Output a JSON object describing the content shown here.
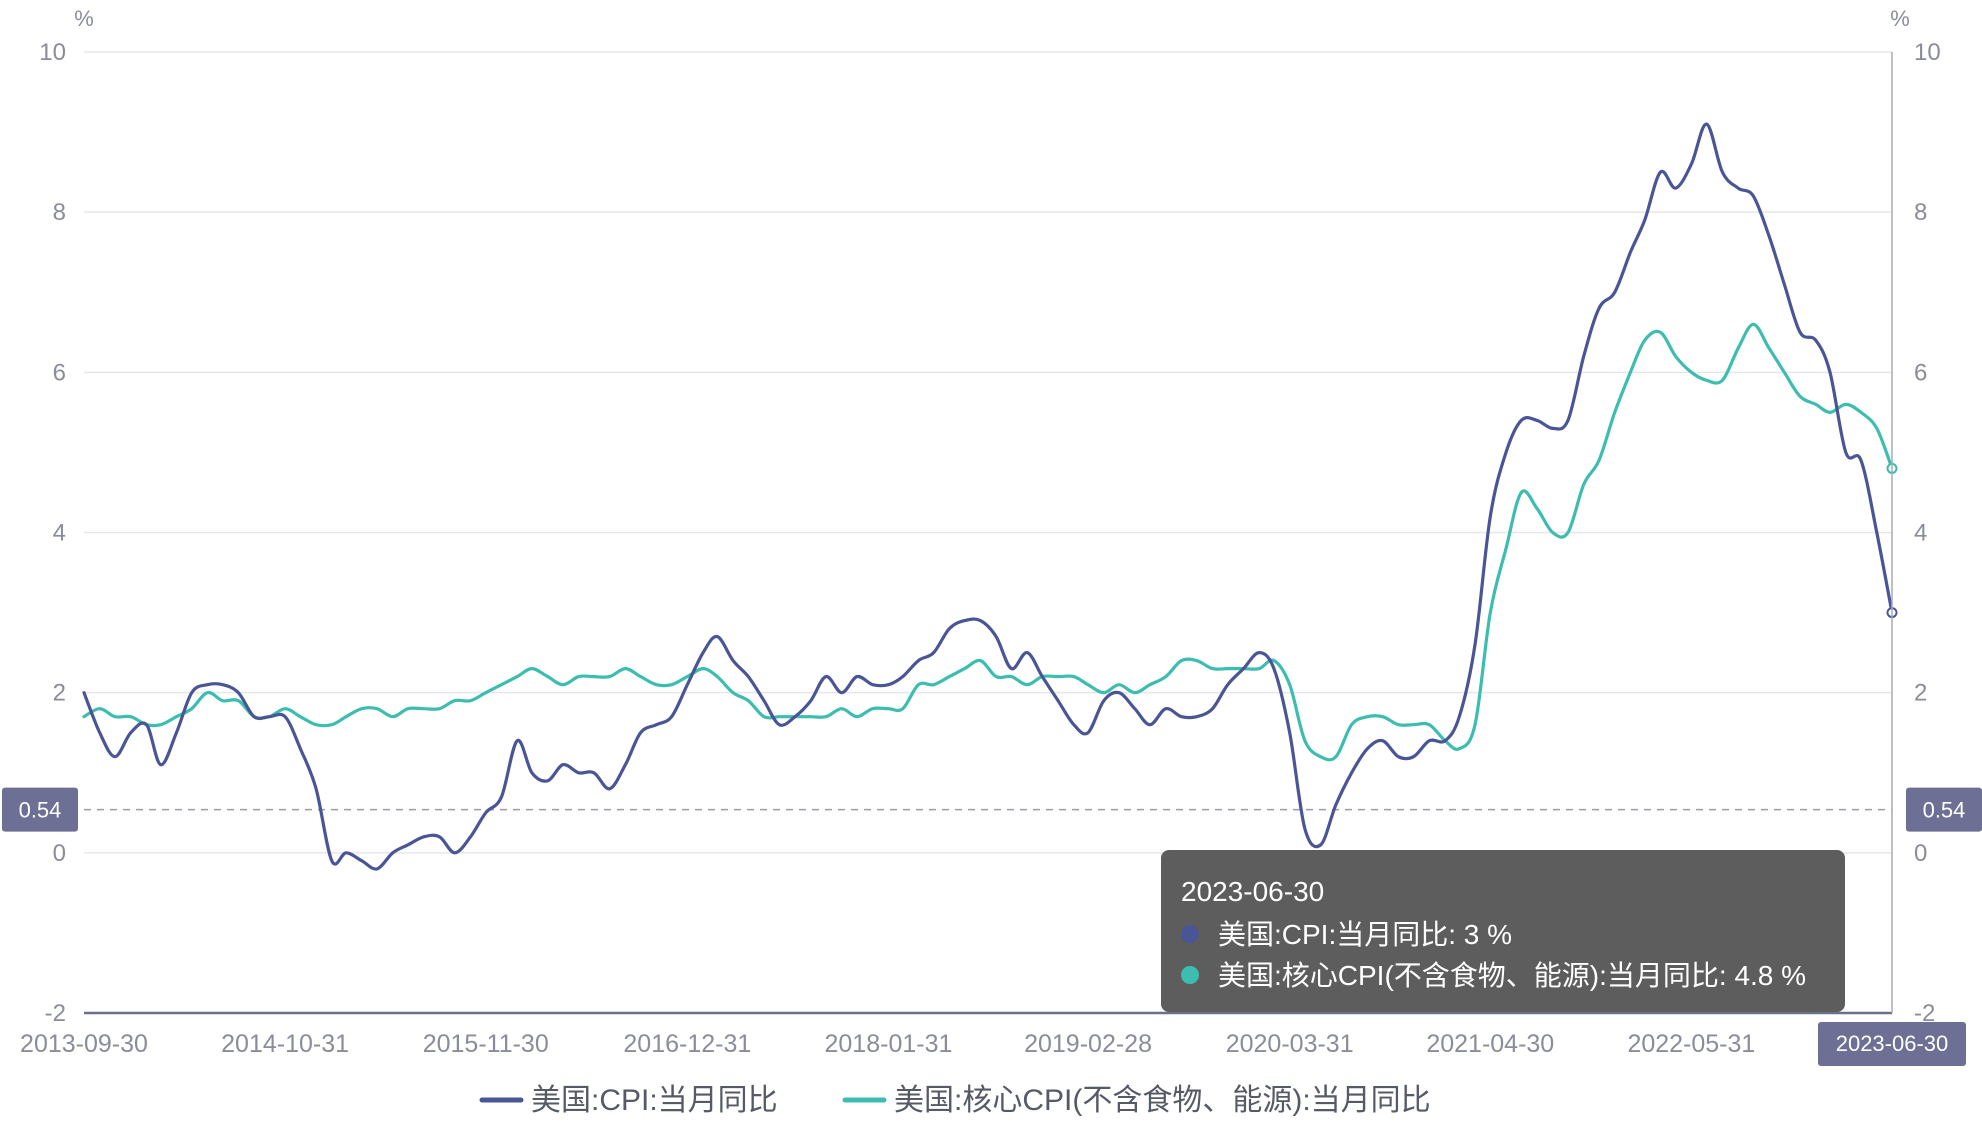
{
  "chart_data": {
    "type": "line",
    "y_unit_left": "%",
    "y_unit_right": "%",
    "y_ticks": [
      "10",
      "8",
      "6",
      "4",
      "2",
      "0",
      "-2"
    ],
    "ylim": [
      -2,
      10
    ],
    "x_tick_labels": [
      "2013-09-30",
      "2014-10-31",
      "2015-11-30",
      "2016-12-31",
      "2018-01-31",
      "2019-02-28",
      "2020-03-31",
      "2021-04-30",
      "2022-05-31"
    ],
    "x_range": [
      "2013-09-30",
      "2023-06-30"
    ],
    "reference_line": {
      "value": 0.54,
      "label": "0.54"
    },
    "crosshair": {
      "x": "2023-06-30",
      "label": "2023-06-30"
    },
    "tooltip": {
      "date": "2023-06-30",
      "rows": [
        {
          "series": "美国:CPI:当月同比",
          "text": "美国:CPI:当月同比:   3 %"
        },
        {
          "series": "美国:核心CPI(不含食物、能源):当月同比",
          "text": "美国:核心CPI(不含食物、能源):当月同比:   4.8 %"
        }
      ]
    },
    "legend": {
      "position": "bottom"
    },
    "series": [
      {
        "name": "美国:CPI:当月同比",
        "color": "#4a5596",
        "points": [
          [
            "2013-09-30",
            2.0
          ],
          [
            "2013-10-31",
            1.5
          ],
          [
            "2013-11-30",
            1.2
          ],
          [
            "2013-12-31",
            1.5
          ],
          [
            "2014-01-31",
            1.6
          ],
          [
            "2014-02-28",
            1.1
          ],
          [
            "2014-03-31",
            1.5
          ],
          [
            "2014-04-30",
            2.0
          ],
          [
            "2014-05-31",
            2.1
          ],
          [
            "2014-06-30",
            2.1
          ],
          [
            "2014-07-31",
            2.0
          ],
          [
            "2014-08-31",
            1.7
          ],
          [
            "2014-09-30",
            1.7
          ],
          [
            "2014-10-31",
            1.7
          ],
          [
            "2014-11-30",
            1.3
          ],
          [
            "2014-12-31",
            0.8
          ],
          [
            "2015-01-31",
            -0.1
          ],
          [
            "2015-02-28",
            0.0
          ],
          [
            "2015-03-31",
            -0.1
          ],
          [
            "2015-04-30",
            -0.2
          ],
          [
            "2015-05-31",
            0.0
          ],
          [
            "2015-06-30",
            0.1
          ],
          [
            "2015-07-31",
            0.2
          ],
          [
            "2015-08-31",
            0.2
          ],
          [
            "2015-09-30",
            0.0
          ],
          [
            "2015-10-31",
            0.2
          ],
          [
            "2015-11-30",
            0.5
          ],
          [
            "2015-12-31",
            0.7
          ],
          [
            "2016-01-31",
            1.4
          ],
          [
            "2016-02-29",
            1.0
          ],
          [
            "2016-03-31",
            0.9
          ],
          [
            "2016-04-30",
            1.1
          ],
          [
            "2016-05-31",
            1.0
          ],
          [
            "2016-06-30",
            1.0
          ],
          [
            "2016-07-31",
            0.8
          ],
          [
            "2016-08-31",
            1.1
          ],
          [
            "2016-09-30",
            1.5
          ],
          [
            "2016-10-31",
            1.6
          ],
          [
            "2016-11-30",
            1.7
          ],
          [
            "2016-12-31",
            2.1
          ],
          [
            "2017-01-31",
            2.5
          ],
          [
            "2017-02-28",
            2.7
          ],
          [
            "2017-03-31",
            2.4
          ],
          [
            "2017-04-30",
            2.2
          ],
          [
            "2017-05-31",
            1.9
          ],
          [
            "2017-06-30",
            1.6
          ],
          [
            "2017-07-31",
            1.7
          ],
          [
            "2017-08-31",
            1.9
          ],
          [
            "2017-09-30",
            2.2
          ],
          [
            "2017-10-31",
            2.0
          ],
          [
            "2017-11-30",
            2.2
          ],
          [
            "2017-12-31",
            2.1
          ],
          [
            "2018-01-31",
            2.1
          ],
          [
            "2018-02-28",
            2.2
          ],
          [
            "2018-03-31",
            2.4
          ],
          [
            "2018-04-30",
            2.5
          ],
          [
            "2018-05-31",
            2.8
          ],
          [
            "2018-06-30",
            2.9
          ],
          [
            "2018-07-31",
            2.9
          ],
          [
            "2018-08-31",
            2.7
          ],
          [
            "2018-09-30",
            2.3
          ],
          [
            "2018-10-31",
            2.5
          ],
          [
            "2018-11-30",
            2.2
          ],
          [
            "2018-12-31",
            1.9
          ],
          [
            "2019-01-31",
            1.6
          ],
          [
            "2019-02-28",
            1.5
          ],
          [
            "2019-03-31",
            1.9
          ],
          [
            "2019-04-30",
            2.0
          ],
          [
            "2019-05-31",
            1.8
          ],
          [
            "2019-06-30",
            1.6
          ],
          [
            "2019-07-31",
            1.8
          ],
          [
            "2019-08-31",
            1.7
          ],
          [
            "2019-09-30",
            1.7
          ],
          [
            "2019-10-31",
            1.8
          ],
          [
            "2019-11-30",
            2.1
          ],
          [
            "2019-12-31",
            2.3
          ],
          [
            "2020-01-31",
            2.5
          ],
          [
            "2020-02-29",
            2.3
          ],
          [
            "2020-03-31",
            1.5
          ],
          [
            "2020-04-30",
            0.3
          ],
          [
            "2020-05-31",
            0.1
          ],
          [
            "2020-06-30",
            0.6
          ],
          [
            "2020-07-31",
            1.0
          ],
          [
            "2020-08-31",
            1.3
          ],
          [
            "2020-09-30",
            1.4
          ],
          [
            "2020-10-31",
            1.2
          ],
          [
            "2020-11-30",
            1.2
          ],
          [
            "2020-12-31",
            1.4
          ],
          [
            "2021-01-31",
            1.4
          ],
          [
            "2021-02-28",
            1.7
          ],
          [
            "2021-03-31",
            2.6
          ],
          [
            "2021-04-30",
            4.2
          ],
          [
            "2021-05-31",
            5.0
          ],
          [
            "2021-06-30",
            5.4
          ],
          [
            "2021-07-31",
            5.4
          ],
          [
            "2021-08-31",
            5.3
          ],
          [
            "2021-09-30",
            5.4
          ],
          [
            "2021-10-31",
            6.2
          ],
          [
            "2021-11-30",
            6.8
          ],
          [
            "2021-12-31",
            7.0
          ],
          [
            "2022-01-31",
            7.5
          ],
          [
            "2022-02-28",
            7.9
          ],
          [
            "2022-03-31",
            8.5
          ],
          [
            "2022-04-30",
            8.3
          ],
          [
            "2022-05-31",
            8.6
          ],
          [
            "2022-06-30",
            9.1
          ],
          [
            "2022-07-31",
            8.5
          ],
          [
            "2022-08-31",
            8.3
          ],
          [
            "2022-09-30",
            8.2
          ],
          [
            "2022-10-31",
            7.7
          ],
          [
            "2022-11-30",
            7.1
          ],
          [
            "2022-12-31",
            6.5
          ],
          [
            "2023-01-31",
            6.4
          ],
          [
            "2023-02-28",
            6.0
          ],
          [
            "2023-03-31",
            5.0
          ],
          [
            "2023-04-30",
            4.9
          ],
          [
            "2023-05-31",
            4.0
          ],
          [
            "2023-06-30",
            3.0
          ]
        ]
      },
      {
        "name": "美国:核心CPI(不含食物、能源):当月同比",
        "color": "#3dbdb0",
        "points": [
          [
            "2013-09-30",
            1.7
          ],
          [
            "2013-10-31",
            1.8
          ],
          [
            "2013-11-30",
            1.7
          ],
          [
            "2013-12-31",
            1.7
          ],
          [
            "2014-01-31",
            1.6
          ],
          [
            "2014-02-28",
            1.6
          ],
          [
            "2014-03-31",
            1.7
          ],
          [
            "2014-04-30",
            1.8
          ],
          [
            "2014-05-31",
            2.0
          ],
          [
            "2014-06-30",
            1.9
          ],
          [
            "2014-07-31",
            1.9
          ],
          [
            "2014-08-31",
            1.7
          ],
          [
            "2014-09-30",
            1.7
          ],
          [
            "2014-10-31",
            1.8
          ],
          [
            "2014-11-30",
            1.7
          ],
          [
            "2014-12-31",
            1.6
          ],
          [
            "2015-01-31",
            1.6
          ],
          [
            "2015-02-28",
            1.7
          ],
          [
            "2015-03-31",
            1.8
          ],
          [
            "2015-04-30",
            1.8
          ],
          [
            "2015-05-31",
            1.7
          ],
          [
            "2015-06-30",
            1.8
          ],
          [
            "2015-07-31",
            1.8
          ],
          [
            "2015-08-31",
            1.8
          ],
          [
            "2015-09-30",
            1.9
          ],
          [
            "2015-10-31",
            1.9
          ],
          [
            "2015-11-30",
            2.0
          ],
          [
            "2015-12-31",
            2.1
          ],
          [
            "2016-01-31",
            2.2
          ],
          [
            "2016-02-29",
            2.3
          ],
          [
            "2016-03-31",
            2.2
          ],
          [
            "2016-04-30",
            2.1
          ],
          [
            "2016-05-31",
            2.2
          ],
          [
            "2016-06-30",
            2.2
          ],
          [
            "2016-07-31",
            2.2
          ],
          [
            "2016-08-31",
            2.3
          ],
          [
            "2016-09-30",
            2.2
          ],
          [
            "2016-10-31",
            2.1
          ],
          [
            "2016-11-30",
            2.1
          ],
          [
            "2016-12-31",
            2.2
          ],
          [
            "2017-01-31",
            2.3
          ],
          [
            "2017-02-28",
            2.2
          ],
          [
            "2017-03-31",
            2.0
          ],
          [
            "2017-04-30",
            1.9
          ],
          [
            "2017-05-31",
            1.7
          ],
          [
            "2017-06-30",
            1.7
          ],
          [
            "2017-07-31",
            1.7
          ],
          [
            "2017-08-31",
            1.7
          ],
          [
            "2017-09-30",
            1.7
          ],
          [
            "2017-10-31",
            1.8
          ],
          [
            "2017-11-30",
            1.7
          ],
          [
            "2017-12-31",
            1.8
          ],
          [
            "2018-01-31",
            1.8
          ],
          [
            "2018-02-28",
            1.8
          ],
          [
            "2018-03-31",
            2.1
          ],
          [
            "2018-04-30",
            2.1
          ],
          [
            "2018-05-31",
            2.2
          ],
          [
            "2018-06-30",
            2.3
          ],
          [
            "2018-07-31",
            2.4
          ],
          [
            "2018-08-31",
            2.2
          ],
          [
            "2018-09-30",
            2.2
          ],
          [
            "2018-10-31",
            2.1
          ],
          [
            "2018-11-30",
            2.2
          ],
          [
            "2018-12-31",
            2.2
          ],
          [
            "2019-01-31",
            2.2
          ],
          [
            "2019-02-28",
            2.1
          ],
          [
            "2019-03-31",
            2.0
          ],
          [
            "2019-04-30",
            2.1
          ],
          [
            "2019-05-31",
            2.0
          ],
          [
            "2019-06-30",
            2.1
          ],
          [
            "2019-07-31",
            2.2
          ],
          [
            "2019-08-31",
            2.4
          ],
          [
            "2019-09-30",
            2.4
          ],
          [
            "2019-10-31",
            2.3
          ],
          [
            "2019-11-30",
            2.3
          ],
          [
            "2019-12-31",
            2.3
          ],
          [
            "2020-01-31",
            2.3
          ],
          [
            "2020-02-29",
            2.4
          ],
          [
            "2020-03-31",
            2.1
          ],
          [
            "2020-04-30",
            1.4
          ],
          [
            "2020-05-31",
            1.2
          ],
          [
            "2020-06-30",
            1.2
          ],
          [
            "2020-07-31",
            1.6
          ],
          [
            "2020-08-31",
            1.7
          ],
          [
            "2020-09-30",
            1.7
          ],
          [
            "2020-10-31",
            1.6
          ],
          [
            "2020-11-30",
            1.6
          ],
          [
            "2020-12-31",
            1.6
          ],
          [
            "2021-01-31",
            1.4
          ],
          [
            "2021-02-28",
            1.3
          ],
          [
            "2021-03-31",
            1.6
          ],
          [
            "2021-04-30",
            3.0
          ],
          [
            "2021-05-31",
            3.8
          ],
          [
            "2021-06-30",
            4.5
          ],
          [
            "2021-07-31",
            4.3
          ],
          [
            "2021-08-31",
            4.0
          ],
          [
            "2021-09-30",
            4.0
          ],
          [
            "2021-10-31",
            4.6
          ],
          [
            "2021-11-30",
            4.9
          ],
          [
            "2021-12-31",
            5.5
          ],
          [
            "2022-01-31",
            6.0
          ],
          [
            "2022-02-28",
            6.4
          ],
          [
            "2022-03-31",
            6.5
          ],
          [
            "2022-04-30",
            6.2
          ],
          [
            "2022-05-31",
            6.0
          ],
          [
            "2022-06-30",
            5.9
          ],
          [
            "2022-07-31",
            5.9
          ],
          [
            "2022-08-31",
            6.3
          ],
          [
            "2022-09-30",
            6.6
          ],
          [
            "2022-10-31",
            6.3
          ],
          [
            "2022-11-30",
            6.0
          ],
          [
            "2022-12-31",
            5.7
          ],
          [
            "2023-01-31",
            5.6
          ],
          [
            "2023-02-28",
            5.5
          ],
          [
            "2023-03-31",
            5.6
          ],
          [
            "2023-04-30",
            5.5
          ],
          [
            "2023-05-31",
            5.3
          ],
          [
            "2023-06-30",
            4.8
          ]
        ]
      }
    ]
  }
}
